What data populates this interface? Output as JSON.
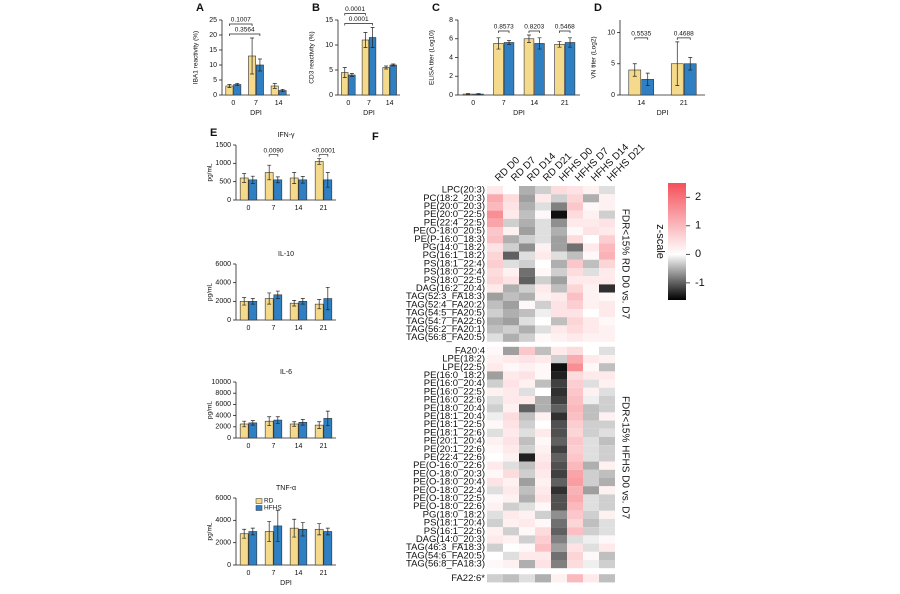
{
  "chart_data": [
    {
      "type": "bar",
      "panel": "A",
      "ylabel": "IBA1 reactivity (%)",
      "xlabel": "DPI",
      "categories": [
        "0",
        "7",
        "14"
      ],
      "series": [
        {
          "color": "#f6da8c",
          "values": [
            3,
            13,
            3
          ],
          "errors": [
            0.5,
            6,
            0.8
          ]
        },
        {
          "color": "#2f80c2",
          "values": [
            3.5,
            10,
            1.5
          ],
          "errors": [
            0.4,
            2,
            0.4
          ]
        }
      ],
      "ylim": [
        0,
        25
      ],
      "yticks": [
        0,
        5,
        10,
        15,
        20,
        25
      ],
      "annotations": [
        {
          "text": "0.1007",
          "between": [
            "0",
            "7"
          ]
        },
        {
          "text": "0.3564",
          "between": [
            "0",
            "7"
          ]
        }
      ]
    },
    {
      "type": "bar",
      "panel": "B",
      "ylabel": "CD3 reactivity (%)",
      "xlabel": "DPI",
      "categories": [
        "0",
        "7",
        "14"
      ],
      "series": [
        {
          "color": "#f6da8c",
          "values": [
            4.5,
            11,
            5.5
          ],
          "errors": [
            1,
            1.5,
            0.3
          ]
        },
        {
          "color": "#2f80c2",
          "values": [
            4,
            11.5,
            6
          ],
          "errors": [
            0.3,
            2,
            0.2
          ]
        }
      ],
      "ylim": [
        0,
        15
      ],
      "yticks": [
        0,
        5,
        10,
        15
      ],
      "annotations": [
        {
          "text": "0.0001",
          "between": [
            "0",
            "7"
          ]
        },
        {
          "text": "0.0001",
          "between": [
            "0",
            "7"
          ]
        }
      ]
    },
    {
      "type": "bar",
      "panel": "C",
      "ylabel": "ELISA titer (Log10)",
      "xlabel": "DPI",
      "categories": [
        "0",
        "7",
        "14",
        "21"
      ],
      "series": [
        {
          "color": "#f6da8c",
          "values": [
            0.1,
            5.5,
            6,
            5.4
          ],
          "errors": [
            0.05,
            0.6,
            0.4,
            0.3
          ]
        },
        {
          "color": "#2f80c2",
          "values": [
            0.1,
            5.6,
            5.5,
            5.6
          ],
          "errors": [
            0.05,
            0.2,
            0.6,
            0.5
          ]
        }
      ],
      "ylim": [
        0,
        8
      ],
      "yticks": [
        0,
        2,
        4,
        6,
        8
      ],
      "annotations": [
        {
          "text": "0.8573",
          "between": [
            "7",
            "7"
          ]
        },
        {
          "text": "0.8203",
          "between": [
            "14",
            "14"
          ]
        },
        {
          "text": "0.5468",
          "between": [
            "21",
            "21"
          ]
        }
      ]
    },
    {
      "type": "bar",
      "panel": "D",
      "ylabel": "VN titer (Log2)",
      "xlabel": "DPI",
      "categories": [
        "14",
        "21"
      ],
      "series": [
        {
          "color": "#f6da8c",
          "values": [
            4,
            5
          ],
          "errors": [
            1,
            3.5
          ]
        },
        {
          "color": "#2f80c2",
          "values": [
            2.5,
            5
          ],
          "errors": [
            1,
            1
          ]
        }
      ],
      "ylim": [
        0,
        12
      ],
      "yticks": [
        0,
        5,
        10
      ],
      "annotations": [
        {
          "text": "0.5535",
          "between": [
            "14",
            "14"
          ]
        },
        {
          "text": "0.4688",
          "between": [
            "21",
            "21"
          ]
        }
      ]
    },
    {
      "type": "bar",
      "panel": "E",
      "title": "IFN-γ",
      "ylabel": "pg/mL",
      "categories": [
        "0",
        "7",
        "14",
        "21"
      ],
      "series": [
        {
          "color": "#f6da8c",
          "values": [
            600,
            750,
            600,
            1050
          ],
          "errors": [
            120,
            200,
            150,
            80
          ]
        },
        {
          "color": "#2f80c2",
          "values": [
            550,
            550,
            550,
            550
          ],
          "errors": [
            100,
            80,
            90,
            200
          ]
        }
      ],
      "ylim": [
        0,
        1500
      ],
      "yticks": [
        0,
        500,
        1000,
        1500
      ],
      "annotations": [
        {
          "text": "0.0090",
          "between": [
            "7",
            "7"
          ]
        },
        {
          "text": "<0.0001",
          "between": [
            "21",
            "21"
          ]
        }
      ]
    },
    {
      "type": "bar",
      "title": "IL-10",
      "ylabel": "pg/mL",
      "categories": [
        "0",
        "7",
        "14",
        "21"
      ],
      "series": [
        {
          "color": "#f6da8c",
          "values": [
            2000,
            2300,
            1800,
            1700
          ],
          "errors": [
            400,
            600,
            300,
            500
          ]
        },
        {
          "color": "#2f80c2",
          "values": [
            2000,
            2700,
            2000,
            2300
          ],
          "errors": [
            300,
            400,
            300,
            1200
          ]
        }
      ],
      "ylim": [
        0,
        6000
      ],
      "yticks": [
        0,
        2000,
        4000,
        6000
      ]
    },
    {
      "type": "bar",
      "title": "IL-6",
      "ylabel": "pg/mL",
      "categories": [
        "0",
        "7",
        "14",
        "21"
      ],
      "series": [
        {
          "color": "#f6da8c",
          "values": [
            2500,
            3000,
            2500,
            2300
          ],
          "errors": [
            500,
            800,
            400,
            600
          ]
        },
        {
          "color": "#2f80c2",
          "values": [
            2700,
            3200,
            2800,
            3500
          ],
          "errors": [
            400,
            600,
            500,
            1300
          ]
        }
      ],
      "ylim": [
        0,
        10000
      ],
      "yticks": [
        0,
        2000,
        4000,
        6000,
        8000,
        10000
      ]
    },
    {
      "type": "bar",
      "title": "TNF-α",
      "ylabel": "pg/mL",
      "xlabel": "DPI",
      "legend": "upper left",
      "categories": [
        "0",
        "7",
        "14",
        "21"
      ],
      "series": [
        {
          "name": "RD",
          "color": "#f6da8c",
          "values": [
            2800,
            3000,
            3300,
            3200
          ],
          "errors": [
            400,
            900,
            800,
            500
          ]
        },
        {
          "name": "HFHS",
          "color": "#2f80c2",
          "values": [
            3000,
            3500,
            3200,
            3000
          ],
          "errors": [
            300,
            1400,
            600,
            300
          ]
        }
      ],
      "ylim": [
        0,
        6000
      ],
      "yticks": [
        0,
        2000,
        4000,
        6000
      ]
    },
    {
      "type": "heatmap",
      "panel": "F",
      "columns": [
        "RD D0",
        "RD D7",
        "RD D14",
        "RD D21",
        "HFHS D0",
        "HFHS D7",
        "HFHS D14",
        "HFHS D21"
      ],
      "zlim": [
        -1.6,
        2.5
      ],
      "colors": [
        "#000000",
        "#ffffff",
        "#f4505a"
      ],
      "colorbar_label": "z-scale",
      "colorbar_ticks": [
        -1,
        0,
        1,
        2
      ],
      "groups": [
        {
          "label": "FDR<15% RD D0 vs. D7",
          "rows": [
            "LPC(20:3)",
            "PC(18:2_20:3)",
            "PE(20:0_20:3)",
            "PE(20:0_22:5)",
            "PE(22:4_22:5)",
            "PE(O-18:0_20:5)",
            "PE(P-16:0_18:3)",
            "PG(14:0_18:2)",
            "PG(16:1_18:2)",
            "PS(18:1_22:4)",
            "PS(18:0_22:4)",
            "PS(18:0_22:5)",
            "DAG(16:2_20:4)",
            "TAG(52:3_FA18:3)",
            "TAG(52:4_FA20:2)",
            "TAG(54:5_FA20:5)",
            "TAG(54:7_FA22:6)",
            "TAG(56:2_FA20:1)",
            "TAG(56:8_FA20:5)"
          ],
          "values": [
            [
              0.3,
              0.0,
              -0.5,
              -0.3,
              0.5,
              0.4,
              0.2,
              -0.2
            ],
            [
              1.2,
              0.5,
              -0.6,
              0.3,
              -0.3,
              0.6,
              -0.5,
              0.2
            ],
            [
              1.0,
              0.4,
              -0.5,
              -0.2,
              -0.8,
              0.8,
              0.1,
              0.2
            ],
            [
              1.6,
              0.3,
              -0.4,
              0.1,
              -1.5,
              0.5,
              0.2,
              -0.3
            ],
            [
              1.3,
              -0.3,
              -0.5,
              -0.2,
              -0.7,
              0.3,
              0.3,
              0.4
            ],
            [
              0.8,
              0.2,
              -0.6,
              -0.2,
              -0.5,
              0.1,
              0.4,
              0.3
            ],
            [
              0.9,
              -0.5,
              -0.3,
              -0.2,
              -0.6,
              0.5,
              0.0,
              0.7
            ],
            [
              0.4,
              -0.3,
              -0.7,
              0.2,
              -0.6,
              -0.9,
              0.3,
              1.0
            ],
            [
              0.6,
              -1.0,
              -0.2,
              0.3,
              -0.2,
              -0.4,
              0.1,
              1.1
            ],
            [
              0.7,
              -0.2,
              -0.3,
              0.0,
              -0.5,
              0.8,
              -0.4,
              0.6
            ],
            [
              0.5,
              0.2,
              -0.9,
              0.1,
              -0.3,
              0.5,
              -0.2,
              0.3
            ],
            [
              0.6,
              0.4,
              -1.0,
              -0.3,
              -0.6,
              0.3,
              0.3,
              0.3
            ],
            [
              0.3,
              -0.5,
              -0.3,
              0.3,
              -0.4,
              0.6,
              0.2,
              -1.3
            ],
            [
              -0.6,
              -0.4,
              -0.5,
              0.2,
              0.3,
              0.9,
              0.2,
              0.1
            ],
            [
              -0.4,
              -0.6,
              0.1,
              -0.3,
              0.4,
              0.7,
              0.2,
              0.3
            ],
            [
              -0.3,
              -0.5,
              -0.4,
              -0.1,
              0.4,
              0.4,
              0.0,
              0.3
            ],
            [
              -0.5,
              -0.6,
              -0.2,
              0.0,
              -0.4,
              0.6,
              0.3,
              0.1
            ],
            [
              -0.4,
              -0.3,
              -0.5,
              -0.2,
              0.3,
              0.5,
              0.3,
              0.2
            ],
            [
              -0.2,
              -0.5,
              -0.3,
              0.1,
              0.2,
              0.3,
              0.2,
              0.2
            ]
          ]
        },
        {
          "label": "FDR<15% HFHS D0 vs. D7",
          "rows": [
            "FA20:4",
            "LPE(18:2)",
            "LPE(22:5)",
            "PE(16:0_18:2)",
            "PE(16:0_20:4)",
            "PE(16:0_22:5)",
            "PE(16:0_22:6)",
            "PE(18:0_20:4)",
            "PE(18:1_20:4)",
            "PE(18:1_22:5)",
            "PE(18:1_22:6)",
            "PE(20:1_20:4)",
            "PE(20:1_22:6)",
            "PE(22:4_22:6)",
            "PE(O-16:0_22:6)",
            "PE(O-18:0_20:3)",
            "PE(O-18:0_20:4)",
            "PE(O-18:0_22:4)",
            "PE(O-18:0_22:5)",
            "PE(O-18:0_22:6)",
            "PG(18:0_18:2)",
            "PS(18:1_20:4)",
            "PS(16:1_22:6)",
            "DAG(14:0_20:3)",
            "TAG(46:3_FA18:3)",
            "TAG(54:6_FA20:5)",
            "TAG(56:8_FA18:3)"
          ],
          "values": [
            [
              0.1,
              -0.6,
              0.8,
              -0.4,
              0.3,
              0.5,
              0.0,
              -0.2
            ],
            [
              0.2,
              0.3,
              0.4,
              0.3,
              -0.3,
              1.2,
              0.3,
              0.2
            ],
            [
              0.3,
              0.1,
              0.2,
              0.1,
              -1.5,
              1.6,
              0.1,
              -0.4
            ],
            [
              -0.6,
              0.3,
              0.4,
              0.1,
              -1.4,
              0.5,
              0.3,
              0.3
            ],
            [
              -0.3,
              0.4,
              0.2,
              -0.4,
              -1.2,
              0.7,
              -0.2,
              0.2
            ],
            [
              0.2,
              0.3,
              -0.2,
              0.0,
              -1.3,
              0.8,
              0.2,
              -0.2
            ],
            [
              -0.2,
              0.3,
              0.3,
              -0.5,
              -1.2,
              0.9,
              -0.1,
              -0.3
            ],
            [
              -0.3,
              0.2,
              -1.0,
              -0.5,
              -1.0,
              1.0,
              -0.4,
              -0.3
            ],
            [
              -0.1,
              0.5,
              -0.4,
              0.2,
              -1.3,
              0.9,
              -0.4,
              0.2
            ],
            [
              0.1,
              0.4,
              -0.3,
              0.0,
              -1.1,
              0.7,
              -0.3,
              -0.3
            ],
            [
              -0.2,
              0.3,
              -0.2,
              0.3,
              -1.1,
              0.6,
              -0.3,
              -0.2
            ],
            [
              0.2,
              0.4,
              -0.4,
              0.1,
              -1.0,
              0.8,
              -0.2,
              -0.4
            ],
            [
              0.1,
              0.3,
              -0.3,
              0.2,
              -1.2,
              0.7,
              -0.2,
              -0.3
            ],
            [
              0.0,
              0.2,
              -1.4,
              0.3,
              -1.0,
              0.8,
              -0.2,
              -0.3
            ],
            [
              0.3,
              -0.2,
              -0.4,
              0.4,
              -1.1,
              1.0,
              -0.5,
              0.2
            ],
            [
              0.1,
              0.5,
              -0.3,
              0.3,
              -1.2,
              1.3,
              -0.3,
              -0.4
            ],
            [
              0.4,
              0.2,
              -0.6,
              0.2,
              -1.0,
              1.4,
              -0.3,
              -0.5
            ],
            [
              -0.2,
              0.3,
              -0.4,
              0.3,
              -1.3,
              1.1,
              -0.6,
              0.2
            ],
            [
              0.1,
              0.2,
              -0.5,
              0.4,
              -1.1,
              1.2,
              -0.2,
              -0.3
            ],
            [
              0.2,
              -0.3,
              -0.2,
              0.1,
              -1.1,
              1.0,
              -0.2,
              -0.3
            ],
            [
              -0.2,
              0.3,
              0.2,
              -0.3,
              -0.7,
              0.8,
              -0.3,
              0.2
            ],
            [
              -0.3,
              0.2,
              0.3,
              0.1,
              -0.9,
              0.6,
              -0.4,
              -0.2
            ],
            [
              0.2,
              -0.3,
              0.1,
              0.5,
              -1.0,
              0.9,
              -0.3,
              -0.2
            ],
            [
              0.3,
              0.2,
              -0.3,
              0.7,
              -0.8,
              -0.2,
              -0.1,
              0.1
            ],
            [
              -0.3,
              0.0,
              0.1,
              0.9,
              -0.6,
              0.4,
              -0.2,
              0.3
            ],
            [
              0.0,
              -0.2,
              0.3,
              0.3,
              -0.9,
              0.6,
              0.1,
              -0.4
            ],
            [
              0.1,
              0.2,
              -0.5,
              0.4,
              -0.8,
              0.5,
              -0.1,
              -0.3
            ]
          ]
        },
        {
          "rows": [
            "FA22:6*"
          ],
          "values": [
            [
              -0.3,
              -0.4,
              -0.2,
              -0.5,
              0.2,
              1.0,
              0.3,
              -0.4
            ]
          ]
        }
      ]
    }
  ]
}
